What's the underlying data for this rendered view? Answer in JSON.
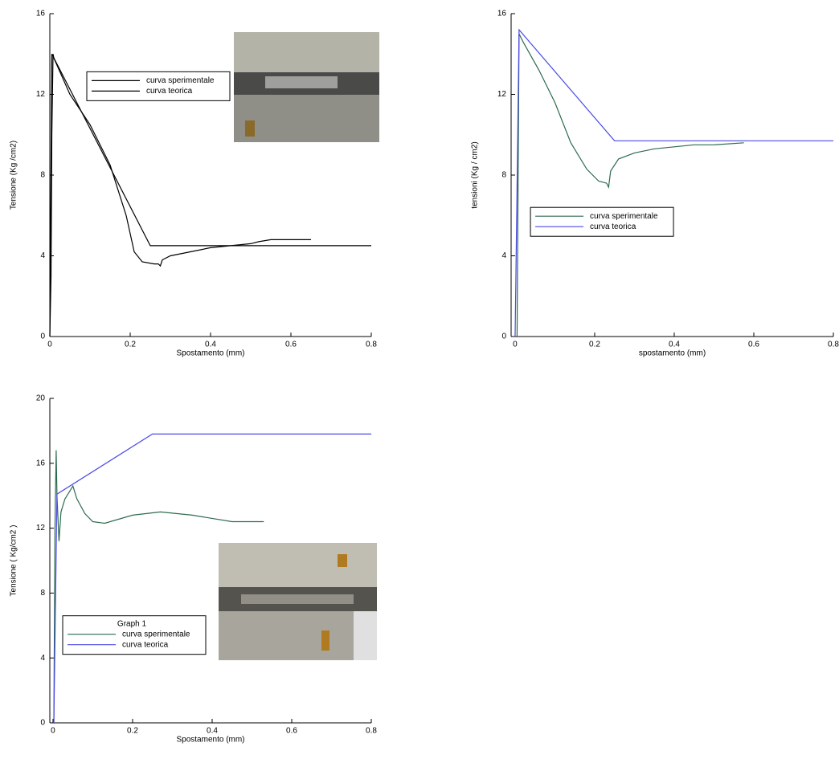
{
  "chart_data": [
    {
      "type": "line",
      "xlabel": "Spostamento (mm)",
      "ylabel": "Tensione (Kg /cm2)",
      "xlim": [
        0,
        0.8
      ],
      "ylim": [
        0,
        16
      ],
      "xticks": [
        0,
        0.2,
        0.4,
        0.6,
        0.8
      ],
      "yticks": [
        0,
        4,
        8,
        12,
        16
      ],
      "legend": "upper center",
      "series": [
        {
          "name": "curva sperimentale",
          "color": "#000000",
          "x": [
            0,
            0.003,
            0.005,
            0.008,
            0.01,
            0.05,
            0.1,
            0.15,
            0.19,
            0.21,
            0.23,
            0.26,
            0.27,
            0.275,
            0.28,
            0.3,
            0.35,
            0.4,
            0.45,
            0.5,
            0.52,
            0.55,
            0.6,
            0.65
          ],
          "values": [
            0,
            3,
            10,
            14,
            13.8,
            12,
            10.5,
            8.5,
            6,
            4.2,
            3.7,
            3.6,
            3.6,
            3.5,
            3.8,
            4.0,
            4.2,
            4.4,
            4.5,
            4.6,
            4.7,
            4.8,
            4.8,
            4.8
          ]
        },
        {
          "name": "curva teorica",
          "color": "#000000",
          "x": [
            0,
            0.005,
            0.25,
            0.8
          ],
          "values": [
            0,
            14,
            4.5,
            4.5
          ]
        }
      ]
    },
    {
      "type": "line",
      "xlabel": "spostamento (mm)",
      "ylabel": "tensioni (Kg / cm2)",
      "xlim": [
        -0.01,
        0.8
      ],
      "ylim": [
        0,
        16
      ],
      "xticks": [
        0,
        0.2,
        0.4,
        0.6,
        0.8
      ],
      "yticks": [
        0,
        4,
        8,
        12,
        16
      ],
      "legend": "center",
      "series": [
        {
          "name": "curva sperimentale",
          "color": "#2d6b4e",
          "x": [
            0.005,
            0.01,
            0.02,
            0.06,
            0.1,
            0.14,
            0.18,
            0.21,
            0.23,
            0.235,
            0.24,
            0.26,
            0.3,
            0.35,
            0.4,
            0.45,
            0.5,
            0.575
          ],
          "values": [
            0,
            15,
            14.6,
            13.2,
            11.6,
            9.6,
            8.3,
            7.7,
            7.6,
            7.4,
            8.2,
            8.8,
            9.1,
            9.3,
            9.4,
            9.5,
            9.5,
            9.6
          ]
        },
        {
          "name": "curva teorica",
          "color": "#4a4ae6",
          "x": [
            0,
            0.01,
            0.25,
            0.8
          ],
          "values": [
            0,
            15.2,
            9.7,
            9.7
          ]
        }
      ]
    },
    {
      "type": "line",
      "xlabel": "Spostamento (mm)",
      "ylabel": "Tensione ( Kg/cm2 )",
      "xlim": [
        -0.008,
        0.8
      ],
      "ylim": [
        0,
        20
      ],
      "xticks": [
        0,
        0.2,
        0.4,
        0.6,
        0.8
      ],
      "yticks": [
        0,
        4,
        8,
        12,
        16,
        20
      ],
      "legend": "lower left",
      "legend_title": "Graph 1",
      "series": [
        {
          "name": "curva sperimentale",
          "color": "#2d6b4e",
          "x": [
            0.002,
            0.005,
            0.008,
            0.01,
            0.015,
            0.02,
            0.03,
            0.04,
            0.05,
            0.06,
            0.08,
            0.1,
            0.13,
            0.2,
            0.27,
            0.35,
            0.45,
            0.53
          ],
          "values": [
            0,
            12,
            16.8,
            14,
            11.2,
            13,
            13.8,
            14.2,
            14.6,
            13.8,
            12.9,
            12.4,
            12.3,
            12.8,
            13,
            12.8,
            12.4,
            12.4
          ]
        },
        {
          "name": "curva teorica",
          "color": "#4a4ae6",
          "x": [
            0.002,
            0.01,
            0.25,
            0.8
          ],
          "values": [
            0,
            14.1,
            17.8,
            17.8
          ]
        }
      ]
    }
  ]
}
